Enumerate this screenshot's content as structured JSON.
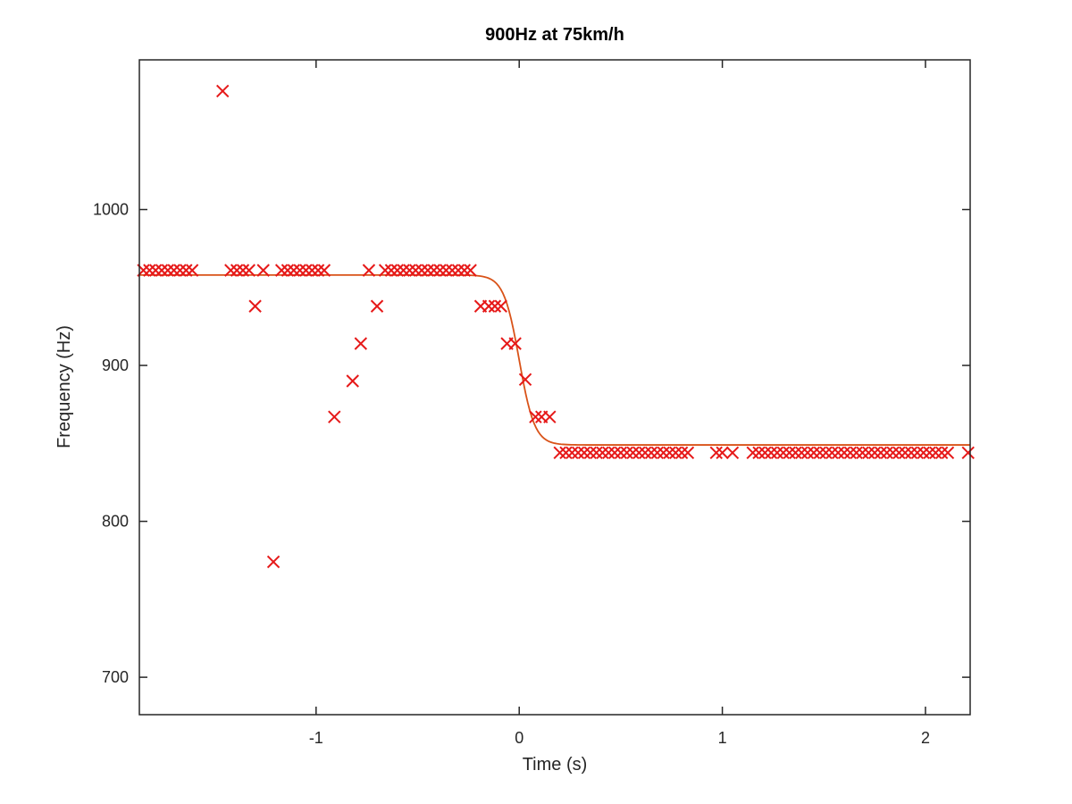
{
  "chart_data": {
    "type": "scatter",
    "title": "900Hz at 75km/h",
    "xlabel": "Time (s)",
    "ylabel": "Frequency (Hz)",
    "xlim": [
      -1.87,
      2.22
    ],
    "ylim": [
      676,
      1096
    ],
    "xticks": [
      -1,
      0,
      1,
      2
    ],
    "xtick_labels": [
      "-1",
      "0",
      "1",
      "2"
    ],
    "yticks": [
      700,
      800,
      900,
      1000
    ],
    "ytick_labels": [
      "700",
      "800",
      "900",
      "1000"
    ],
    "grid": false,
    "colors": {
      "markers": "#e61919",
      "fit": "#d95319",
      "axes": "#262626"
    },
    "series": [
      {
        "kind": "scatter",
        "marker": "x",
        "points": [
          [
            -1.85,
            961
          ],
          [
            -1.82,
            961
          ],
          [
            -1.79,
            961
          ],
          [
            -1.76,
            961
          ],
          [
            -1.73,
            961
          ],
          [
            -1.7,
            961
          ],
          [
            -1.67,
            961
          ],
          [
            -1.64,
            961
          ],
          [
            -1.61,
            961
          ],
          [
            -1.46,
            1076
          ],
          [
            -1.42,
            961
          ],
          [
            -1.39,
            961
          ],
          [
            -1.36,
            961
          ],
          [
            -1.33,
            961
          ],
          [
            -1.3,
            938
          ],
          [
            -1.26,
            961
          ],
          [
            -1.21,
            774
          ],
          [
            -1.17,
            961
          ],
          [
            -1.14,
            961
          ],
          [
            -1.11,
            961
          ],
          [
            -1.08,
            961
          ],
          [
            -1.05,
            961
          ],
          [
            -1.02,
            961
          ],
          [
            -0.99,
            961
          ],
          [
            -0.96,
            961
          ],
          [
            -0.91,
            867
          ],
          [
            -0.82,
            890
          ],
          [
            -0.78,
            914
          ],
          [
            -0.74,
            961
          ],
          [
            -0.7,
            938
          ],
          [
            -0.66,
            961
          ],
          [
            -0.63,
            961
          ],
          [
            -0.6,
            961
          ],
          [
            -0.57,
            961
          ],
          [
            -0.54,
            961
          ],
          [
            -0.51,
            961
          ],
          [
            -0.48,
            961
          ],
          [
            -0.45,
            961
          ],
          [
            -0.42,
            961
          ],
          [
            -0.39,
            961
          ],
          [
            -0.36,
            961
          ],
          [
            -0.33,
            961
          ],
          [
            -0.3,
            961
          ],
          [
            -0.27,
            961
          ],
          [
            -0.24,
            961
          ],
          [
            -0.19,
            938
          ],
          [
            -0.15,
            938
          ],
          [
            -0.12,
            938
          ],
          [
            -0.09,
            938
          ],
          [
            -0.06,
            914
          ],
          [
            -0.02,
            914
          ],
          [
            0.03,
            891
          ],
          [
            0.08,
            867
          ],
          [
            0.11,
            867
          ],
          [
            0.15,
            867
          ],
          [
            0.2,
            844
          ],
          [
            0.23,
            844
          ],
          [
            0.26,
            844
          ],
          [
            0.29,
            844
          ],
          [
            0.32,
            844
          ],
          [
            0.35,
            844
          ],
          [
            0.38,
            844
          ],
          [
            0.41,
            844
          ],
          [
            0.44,
            844
          ],
          [
            0.47,
            844
          ],
          [
            0.5,
            844
          ],
          [
            0.53,
            844
          ],
          [
            0.56,
            844
          ],
          [
            0.59,
            844
          ],
          [
            0.62,
            844
          ],
          [
            0.65,
            844
          ],
          [
            0.68,
            844
          ],
          [
            0.71,
            844
          ],
          [
            0.74,
            844
          ],
          [
            0.77,
            844
          ],
          [
            0.8,
            844
          ],
          [
            0.83,
            844
          ],
          [
            0.97,
            844
          ],
          [
            1.0,
            844
          ],
          [
            1.05,
            844
          ],
          [
            1.15,
            844
          ],
          [
            1.18,
            844
          ],
          [
            1.21,
            844
          ],
          [
            1.24,
            844
          ],
          [
            1.27,
            844
          ],
          [
            1.3,
            844
          ],
          [
            1.33,
            844
          ],
          [
            1.36,
            844
          ],
          [
            1.39,
            844
          ],
          [
            1.42,
            844
          ],
          [
            1.45,
            844
          ],
          [
            1.48,
            844
          ],
          [
            1.51,
            844
          ],
          [
            1.54,
            844
          ],
          [
            1.57,
            844
          ],
          [
            1.6,
            844
          ],
          [
            1.63,
            844
          ],
          [
            1.66,
            844
          ],
          [
            1.69,
            844
          ],
          [
            1.72,
            844
          ],
          [
            1.75,
            844
          ],
          [
            1.78,
            844
          ],
          [
            1.81,
            844
          ],
          [
            1.84,
            844
          ],
          [
            1.87,
            844
          ],
          [
            1.9,
            844
          ],
          [
            1.93,
            844
          ],
          [
            1.96,
            844
          ],
          [
            1.99,
            844
          ],
          [
            2.02,
            844
          ],
          [
            2.05,
            844
          ],
          [
            2.08,
            844
          ],
          [
            2.11,
            844
          ],
          [
            2.21,
            844
          ]
        ]
      },
      {
        "kind": "line",
        "model": "sigmoid",
        "high": 958,
        "low": 849,
        "center": 0.0,
        "width": 0.038
      }
    ]
  }
}
